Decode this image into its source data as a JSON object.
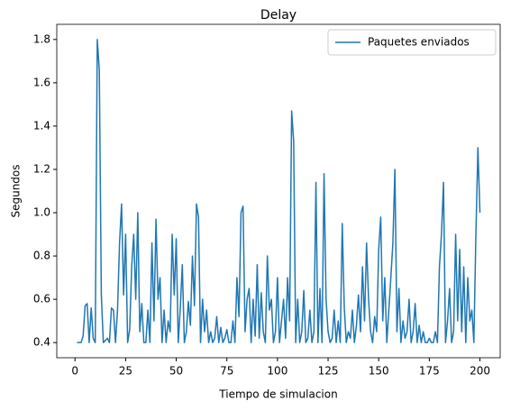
{
  "chart_data": {
    "type": "line",
    "title": "Delay",
    "x_label": "Tiempo de simulacion",
    "y_label": "Segundos",
    "x": [
      1,
      2,
      3,
      4,
      5,
      6,
      7,
      8,
      9,
      10,
      11,
      12,
      13,
      14,
      15,
      16,
      17,
      18,
      19,
      20,
      21,
      22,
      23,
      24,
      25,
      26,
      27,
      28,
      29,
      30,
      31,
      32,
      33,
      34,
      35,
      36,
      37,
      38,
      39,
      40,
      41,
      42,
      43,
      44,
      45,
      46,
      47,
      48,
      49,
      50,
      51,
      52,
      53,
      54,
      55,
      56,
      57,
      58,
      59,
      60,
      61,
      62,
      63,
      64,
      65,
      66,
      67,
      68,
      69,
      70,
      71,
      72,
      73,
      74,
      75,
      76,
      77,
      78,
      79,
      80,
      81,
      82,
      83,
      84,
      85,
      86,
      87,
      88,
      89,
      90,
      91,
      92,
      93,
      94,
      95,
      96,
      97,
      98,
      99,
      100,
      101,
      102,
      103,
      104,
      105,
      106,
      107,
      108,
      109,
      110,
      111,
      112,
      113,
      114,
      115,
      116,
      117,
      118,
      119,
      120,
      121,
      122,
      123,
      124,
      125,
      126,
      127,
      128,
      129,
      130,
      131,
      132,
      133,
      134,
      135,
      136,
      137,
      138,
      139,
      140,
      141,
      142,
      143,
      144,
      145,
      146,
      147,
      148,
      149,
      150,
      151,
      152,
      153,
      154,
      155,
      156,
      157,
      158,
      159,
      160,
      161,
      162,
      163,
      164,
      165,
      166,
      167,
      168,
      169,
      170,
      171,
      172,
      173,
      174,
      175,
      176,
      177,
      178,
      179,
      180,
      181,
      182,
      183,
      184,
      185,
      186,
      187,
      188,
      189,
      190,
      191,
      192,
      193,
      194,
      195,
      196,
      197,
      198,
      199,
      200
    ],
    "series": [
      {
        "name": "Paquetes enviados",
        "color": "#1f77b4",
        "values": [
          0.4,
          0.4,
          0.4,
          0.43,
          0.57,
          0.58,
          0.4,
          0.56,
          0.42,
          0.4,
          1.8,
          1.66,
          0.62,
          0.4,
          0.41,
          0.42,
          0.4,
          0.56,
          0.55,
          0.4,
          0.55,
          0.86,
          1.04,
          0.62,
          0.9,
          0.4,
          0.46,
          0.75,
          0.9,
          0.6,
          1.0,
          0.45,
          0.58,
          0.4,
          0.4,
          0.55,
          0.4,
          0.86,
          0.5,
          0.97,
          0.6,
          0.7,
          0.4,
          0.55,
          0.4,
          0.5,
          0.45,
          0.9,
          0.62,
          0.88,
          0.4,
          0.56,
          0.76,
          0.4,
          0.45,
          0.59,
          0.48,
          0.8,
          0.57,
          1.04,
          0.98,
          0.4,
          0.6,
          0.45,
          0.55,
          0.4,
          0.45,
          0.4,
          0.42,
          0.52,
          0.4,
          0.47,
          0.4,
          0.42,
          0.46,
          0.4,
          0.4,
          0.5,
          0.4,
          0.7,
          0.52,
          1.0,
          1.03,
          0.45,
          0.6,
          0.65,
          0.4,
          0.6,
          0.43,
          0.76,
          0.42,
          0.63,
          0.45,
          0.4,
          0.8,
          0.55,
          0.6,
          0.4,
          0.45,
          0.7,
          0.4,
          0.5,
          0.6,
          0.42,
          0.7,
          0.5,
          1.47,
          1.33,
          0.4,
          0.6,
          0.4,
          0.45,
          0.64,
          0.4,
          0.42,
          0.55,
          0.4,
          0.45,
          1.14,
          0.4,
          0.65,
          0.4,
          1.18,
          0.6,
          0.45,
          0.4,
          0.42,
          0.55,
          0.4,
          0.5,
          0.4,
          0.95,
          0.56,
          0.4,
          0.45,
          0.42,
          0.55,
          0.4,
          0.48,
          0.62,
          0.45,
          0.75,
          0.5,
          0.86,
          0.6,
          0.45,
          0.4,
          0.52,
          0.45,
          0.83,
          0.98,
          0.5,
          0.7,
          0.4,
          0.55,
          0.7,
          0.86,
          1.2,
          0.45,
          0.65,
          0.4,
          0.5,
          0.42,
          0.45,
          0.6,
          0.4,
          0.45,
          0.58,
          0.4,
          0.48,
          0.4,
          0.45,
          0.4,
          0.4,
          0.42,
          0.4,
          0.4,
          0.45,
          0.4,
          0.75,
          0.9,
          1.14,
          0.4,
          0.5,
          0.65,
          0.4,
          0.45,
          0.9,
          0.5,
          0.83,
          0.45,
          0.75,
          0.4,
          0.7,
          0.5,
          0.55,
          0.4,
          0.9,
          1.3,
          1.0
        ]
      }
    ],
    "xlim": [
      -9,
      210
    ],
    "ylim": [
      0.33,
      1.87
    ],
    "xticks": [
      0,
      25,
      50,
      75,
      100,
      125,
      150,
      175,
      200
    ],
    "yticks": [
      0.4,
      0.6,
      0.8,
      {
        "value": 1,
        "label": "1.0"
      },
      1.2,
      1.4,
      1.6,
      1.8
    ],
    "legend": "upper right"
  }
}
